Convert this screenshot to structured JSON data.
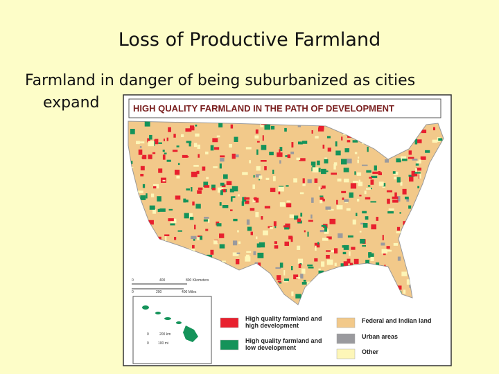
{
  "slide": {
    "title": "Loss of Productive Farmland",
    "body": [
      "Farmland in danger of being suburbanized as cities",
      "expand"
    ]
  },
  "map": {
    "title": "HIGH QUALITY FARMLAND IN THE PATH OF DEVELOPMENT",
    "scale_km": [
      "0",
      "400",
      "800 Kilometers"
    ],
    "scale_mi": [
      "0",
      "200",
      "400 Miles"
    ],
    "inset_scale_km": [
      "0",
      "200 km"
    ],
    "inset_scale_mi": [
      "0",
      "100 mi"
    ],
    "legend": [
      {
        "label": [
          "High quality farmland and",
          "high development"
        ],
        "color": "#e8202e"
      },
      {
        "label": [
          "High quality farmland and",
          "low development"
        ],
        "color": "#14935a"
      },
      {
        "label": [
          "Federal and Indian land"
        ],
        "color": "#f2c98a"
      },
      {
        "label": [
          "Urban areas"
        ],
        "color": "#9a9a9e"
      },
      {
        "label": [
          "Other"
        ],
        "color": "#fdf6b8"
      }
    ]
  }
}
